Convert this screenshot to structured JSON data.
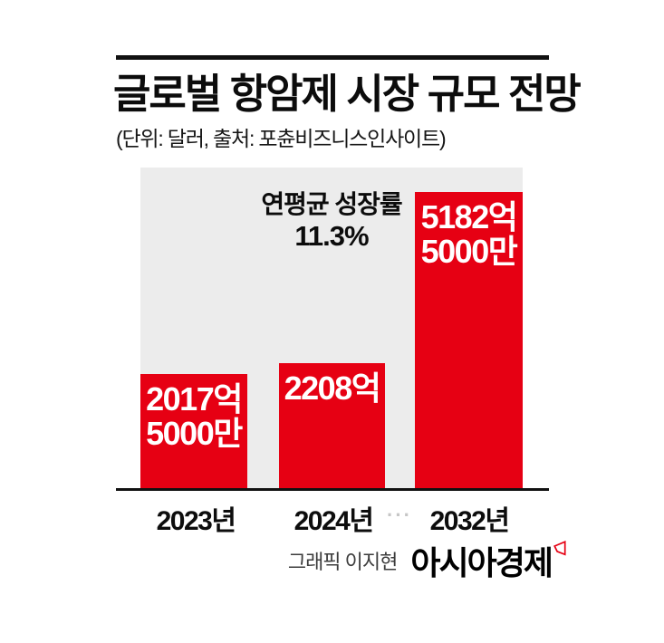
{
  "header": {
    "title": "글로벌 항암제 시장 규모 전망",
    "subtitle": "(단위: 달러, 출처: 포츈비즈니스인사이트)"
  },
  "chart_data": {
    "type": "bar",
    "title": "글로벌 항암제 시장 규모 전망",
    "unit_source_note": "(단위: 달러, 출처: 포츈비즈니스인사이트)",
    "categories": [
      "2023년",
      "2024년",
      "2032년"
    ],
    "values": [
      2017.5,
      2208,
      5182.5
    ],
    "value_unit": "억 달러",
    "bar_labels": [
      [
        "2017억",
        "5000만"
      ],
      [
        "2208억"
      ],
      [
        "5182억",
        "5000만"
      ]
    ],
    "annotation": {
      "label": "연평균 성장률",
      "value": "11.3%"
    },
    "axis_break_marker": "···",
    "ylim": [
      0,
      5600
    ],
    "grid": false,
    "legend_position": "none",
    "bar_color": "#e60013",
    "plot_background": "#ececec"
  },
  "footer": {
    "credit": "그래픽 이지현",
    "brand": "아시아경제",
    "brand_mark_icon": "red-flag-icon"
  },
  "colors": {
    "accent_red": "#e60013",
    "plot_background": "#ececec",
    "text_black": "#0d0d0d",
    "credit_gray": "#3c3c3c",
    "axis_dots_gray": "#c6c6c6",
    "rule_black": "#111111"
  }
}
